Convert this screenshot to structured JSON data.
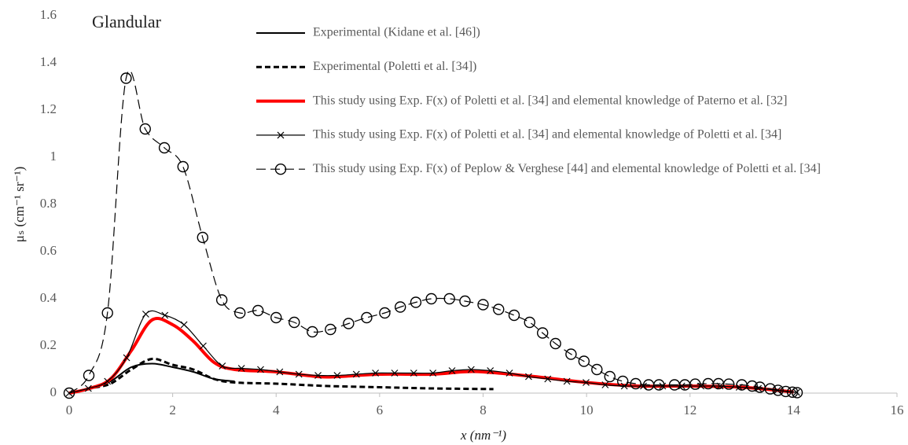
{
  "chart_data": {
    "type": "line",
    "annotation": "Glandular",
    "xlabel": "x (nm⁻¹)",
    "ylabel": "μₛ (cm⁻¹ sr⁻¹)",
    "xlim": [
      0,
      16
    ],
    "xticks": [
      0,
      2,
      4,
      6,
      8,
      10,
      12,
      14,
      16
    ],
    "ylim": [
      0,
      1.6
    ],
    "yticks": [
      0,
      0.2,
      0.4,
      0.6,
      0.8,
      1,
      1.2,
      1.4,
      1.6
    ],
    "grid": false,
    "legend": "top",
    "series": [
      {
        "name": "Experimental (Kidane et al. [46])",
        "color": "#000000",
        "dash": "solid",
        "marker": "none",
        "width": 2,
        "x": [
          0,
          0.4,
          0.8,
          1.2,
          1.6,
          2,
          2.4,
          2.8,
          3.2
        ],
        "values": [
          0,
          0.02,
          0.05,
          0.11,
          0.125,
          0.11,
          0.09,
          0.06,
          0.05
        ]
      },
      {
        "name": "Experimental (Poletti et al.  [34])",
        "color": "#000000",
        "dash": "dashed",
        "marker": "none",
        "width": 3,
        "x": [
          0,
          0.4,
          0.8,
          1.2,
          1.6,
          2,
          2.4,
          2.8,
          3.2,
          4,
          5,
          6,
          7,
          8.2
        ],
        "values": [
          0,
          0.02,
          0.04,
          0.1,
          0.145,
          0.12,
          0.1,
          0.06,
          0.045,
          0.04,
          0.03,
          0.025,
          0.02,
          0.017
        ]
      },
      {
        "name": "This study using Exp. F(x) of Poletti et al. [34] and elemental knowledge of Paterno et al. [32]",
        "color": "#ff0000",
        "dash": "solid",
        "marker": "none",
        "width": 4,
        "x": [
          0,
          0.4,
          0.8,
          1.2,
          1.6,
          2,
          2.4,
          2.8,
          3.2,
          4,
          4.8,
          5.2,
          6,
          7,
          7.6,
          8,
          9,
          10,
          11,
          12,
          13,
          14
        ],
        "values": [
          0,
          0.02,
          0.06,
          0.18,
          0.31,
          0.29,
          0.22,
          0.13,
          0.1,
          0.09,
          0.07,
          0.07,
          0.08,
          0.08,
          0.09,
          0.09,
          0.07,
          0.045,
          0.03,
          0.03,
          0.025,
          0.005
        ]
      },
      {
        "name": "This study using Exp. F(x) of Poletti et al. [34] and elemental knowledge of Poletti et al. [34]",
        "color": "#000000",
        "dash": "solid",
        "marker": "x",
        "width": 1.2,
        "x": [
          0,
          0.37,
          0.74,
          1.11,
          1.48,
          1.85,
          2.22,
          2.59,
          2.96,
          3.33,
          3.7,
          4.07,
          4.44,
          4.81,
          5.18,
          5.55,
          5.92,
          6.29,
          6.66,
          7.03,
          7.4,
          7.77,
          8.14,
          8.51,
          8.88,
          9.25,
          9.62,
          9.99,
          10.36,
          10.73,
          11.1,
          11.47,
          11.84,
          12.21,
          12.58,
          12.95,
          13.32,
          13.69,
          14.06
        ],
        "values": [
          0,
          0.02,
          0.05,
          0.15,
          0.335,
          0.33,
          0.29,
          0.2,
          0.115,
          0.105,
          0.1,
          0.09,
          0.08,
          0.075,
          0.075,
          0.08,
          0.085,
          0.085,
          0.085,
          0.085,
          0.095,
          0.1,
          0.095,
          0.085,
          0.07,
          0.06,
          0.05,
          0.045,
          0.035,
          0.03,
          0.03,
          0.03,
          0.03,
          0.03,
          0.03,
          0.025,
          0.02,
          0.012,
          0.003
        ]
      },
      {
        "name": "This study using Exp. F(x) of Peplow & Verghese [44] and elemental knowledge of Poletti et al. [34]",
        "color": "#000000",
        "dash": "long-dash",
        "marker": "circle",
        "width": 1.2,
        "x": [
          0,
          0.38,
          0.74,
          1.1,
          1.47,
          1.84,
          2.2,
          2.58,
          2.95,
          3.3,
          3.65,
          4,
          4.35,
          4.7,
          5.05,
          5.4,
          5.75,
          6.1,
          6.4,
          6.7,
          7,
          7.35,
          7.65,
          8,
          8.3,
          8.6,
          8.9,
          9.15,
          9.4,
          9.7,
          9.95,
          10.2,
          10.45,
          10.7,
          10.95,
          11.2,
          11.4,
          11.7,
          11.9,
          12.1,
          12.35,
          12.55,
          12.75,
          13,
          13.2,
          13.35,
          13.55,
          13.7,
          13.85,
          13.98,
          14.07
        ],
        "values": [
          0,
          0.075,
          0.34,
          1.335,
          1.12,
          1.04,
          0.96,
          0.66,
          0.395,
          0.34,
          0.35,
          0.32,
          0.3,
          0.26,
          0.27,
          0.295,
          0.32,
          0.34,
          0.365,
          0.385,
          0.4,
          0.4,
          0.39,
          0.375,
          0.355,
          0.33,
          0.3,
          0.255,
          0.21,
          0.165,
          0.135,
          0.1,
          0.07,
          0.05,
          0.04,
          0.035,
          0.035,
          0.035,
          0.035,
          0.038,
          0.04,
          0.04,
          0.038,
          0.035,
          0.03,
          0.025,
          0.018,
          0.012,
          0.007,
          0.004,
          0.002
        ]
      }
    ]
  }
}
